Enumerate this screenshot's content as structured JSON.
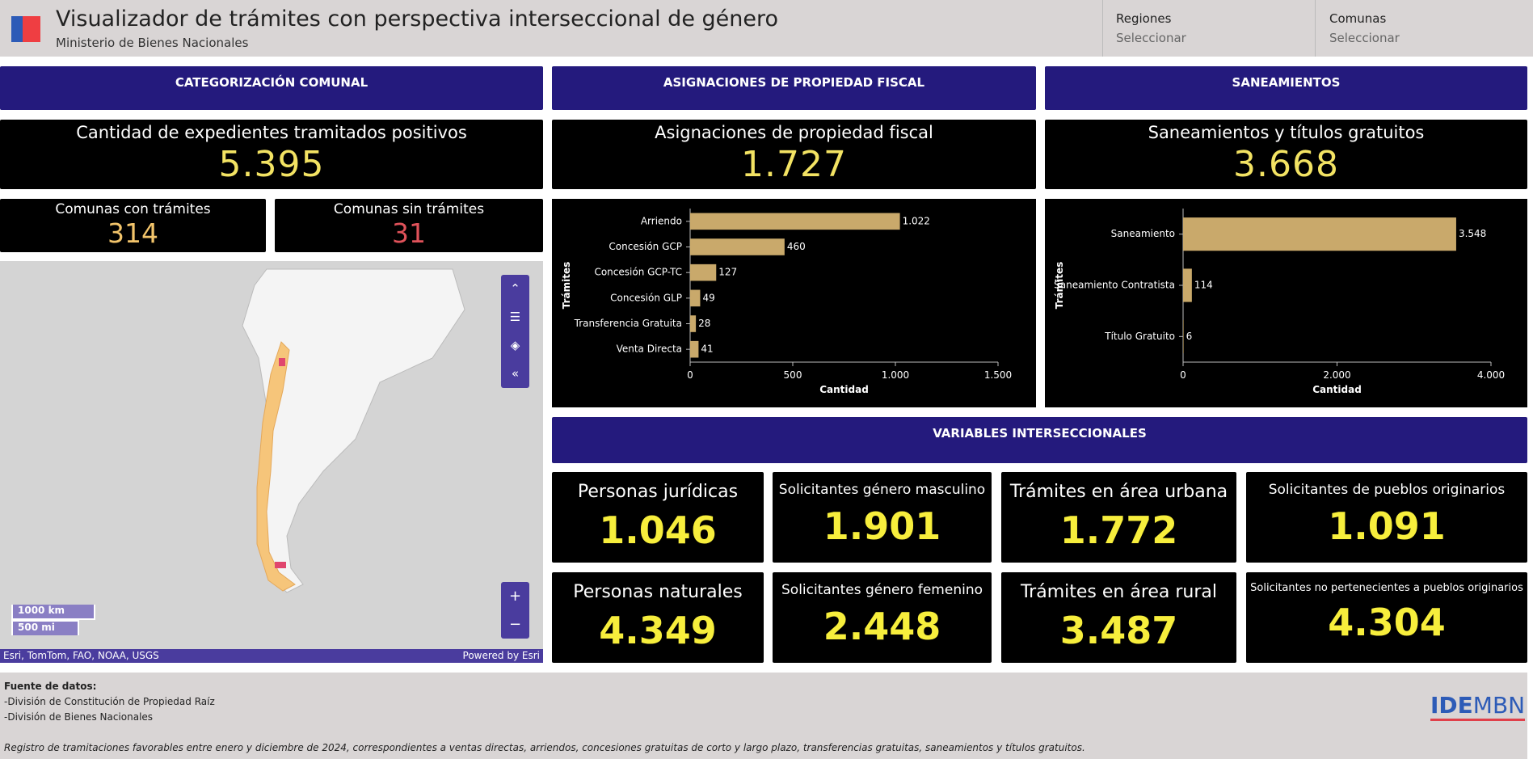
{
  "header": {
    "title": "Visualizador de trámites con perspectiva interseccional de género",
    "subtitle": "Ministerio de Bienes Nacionales",
    "filters": [
      {
        "label": "Regiones",
        "placeholder": "Seleccionar"
      },
      {
        "label": "Comunas",
        "placeholder": "Seleccionar"
      }
    ]
  },
  "sections": [
    "CATEGORIZACIÓN COMUNAL",
    "ASIGNACIONES DE PROPIEDAD FISCAL",
    "SANEAMIENTOS",
    "VARIABLES INTERSECCIONALES"
  ],
  "kpis": [
    {
      "label": "Cantidad de expedientes tramitados positivos",
      "value": "5.395"
    },
    {
      "label": "Asignaciones de propiedad fiscal",
      "value": "1.727"
    },
    {
      "label": "Saneamientos y títulos gratuitos",
      "value": "3.668"
    }
  ],
  "comunas": [
    {
      "label": "Comunas con trámites",
      "value": "314"
    },
    {
      "label": "Comunas sin trámites",
      "value": "31"
    }
  ],
  "map": {
    "scale": [
      "1000 km",
      "500 mi"
    ],
    "attribution": "Esri, TomTom, FAO, NOAA, USGS",
    "powered": "Powered by Esri"
  },
  "chart_data": [
    {
      "type": "hbar",
      "categories": [
        "Arriendo",
        "Concesión GCP",
        "Concesión GCP-TC",
        "Concesión GLP",
        "Transferencia Gratuita",
        "Venta Directa"
      ],
      "values": [
        1022,
        460,
        127,
        49,
        28,
        41
      ],
      "value_labels": [
        "1.022",
        "460",
        "127",
        "49",
        "28",
        "41"
      ],
      "color": "#c9a96b",
      "xlim": [
        0,
        1500
      ],
      "xticks": [
        0,
        500,
        {
          "value": 1000,
          "label": "1.000"
        },
        {
          "value": 1500,
          "label": "1.500"
        }
      ],
      "x_label": "Cantidad",
      "y_label": "Trámites"
    },
    {
      "type": "hbar",
      "categories": [
        "Saneamiento",
        "Saneamiento Contratista",
        "Título Gratuito"
      ],
      "values": [
        3548,
        114,
        6
      ],
      "value_labels": [
        "3.548",
        "114",
        "6"
      ],
      "color": "#c9a96b",
      "xlim": [
        0,
        4000
      ],
      "xticks": [
        0,
        {
          "value": 2000,
          "label": "2.000"
        },
        {
          "value": 4000,
          "label": "4.000"
        }
      ],
      "x_label": "Cantidad",
      "y_label": "Trámites"
    }
  ],
  "tiles": [
    {
      "label": "Personas jurídicas",
      "value": "1.046"
    },
    {
      "label": "Solicitantes género masculino",
      "value": "1.901"
    },
    {
      "label": "Trámites en área urbana",
      "value": "1.772"
    },
    {
      "label": "Solicitantes de pueblos originarios",
      "value": "1.091"
    },
    {
      "label": "Personas naturales",
      "value": "4.349"
    },
    {
      "label": "Solicitantes género femenino",
      "value": "2.448"
    },
    {
      "label": "Trámites en área rural",
      "value": "3.487"
    },
    {
      "label": "Solicitantes no pertenecientes a pueblos originarios",
      "value": "4.304"
    }
  ],
  "footer": {
    "heading": "Fuente de datos:",
    "sources": [
      "-División de Constitución de Propiedad Raíz",
      "-División de Bienes Nacionales"
    ],
    "note": "Registro de tramitaciones favorables entre enero y diciembre de 2024, correspondientes a ventas directas, arriendos, concesiones gratuitas de corto y largo plazo, transferencias gratuitas, saneamientos y títulos gratuitos.",
    "logo": [
      "IDE",
      "MBN"
    ]
  }
}
